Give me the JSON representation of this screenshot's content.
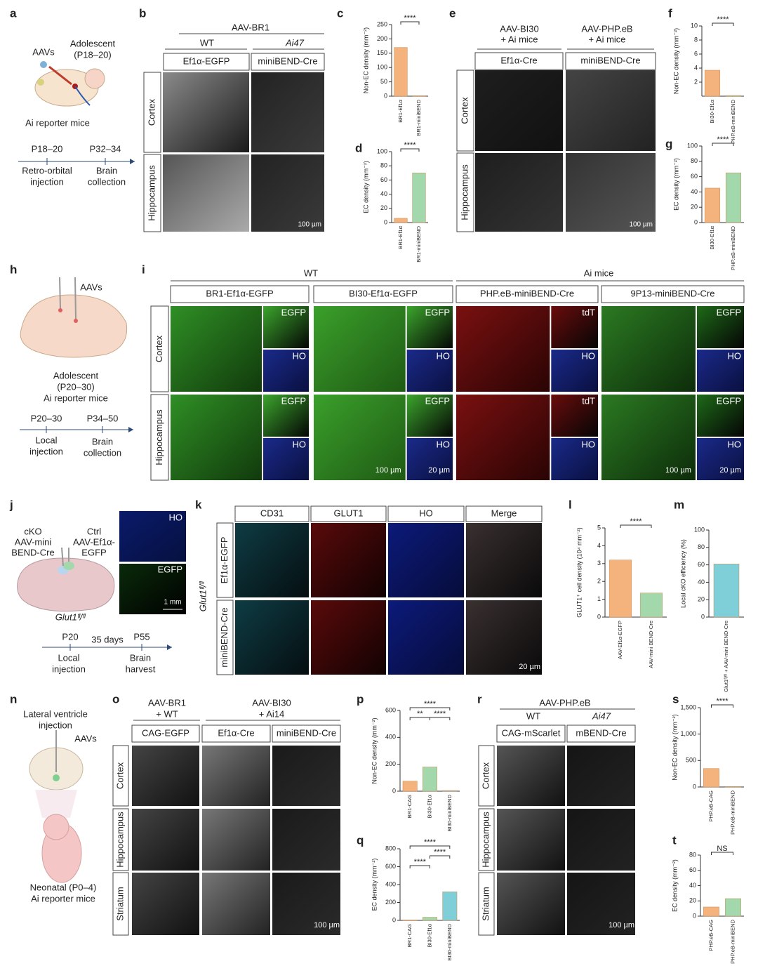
{
  "a": {
    "label": "a",
    "aavs": "AAVs",
    "age": [
      "Adolescent",
      "(P18–20)"
    ],
    "mice": "Ai reporter mice",
    "t1": "P18–20",
    "t2": "P32–34",
    "s1": [
      "Retro-orbital",
      "injection"
    ],
    "s2": [
      "Brain",
      "collection"
    ]
  },
  "b": {
    "label": "b",
    "vector": "AAV-BR1",
    "groups": [
      "WT",
      "Ai47"
    ],
    "constructs": [
      "Ef1α-EGFP",
      "miniBEND-Cre"
    ],
    "regions": [
      "Cortex",
      "Hippocampus"
    ],
    "scale": "100 µm"
  },
  "c": {
    "label": "c",
    "chart": {
      "type": "bar",
      "ylabel": "Non-EC density (mm⁻²)",
      "categories": [
        "BR1-Ef1α",
        "BR1-miniBEND"
      ],
      "values": [
        170,
        2
      ],
      "colors": [
        "#f4b27c",
        "#a3d8ad"
      ],
      "ylim": [
        0,
        250
      ],
      "yticks": [
        0,
        50,
        100,
        150,
        200,
        250
      ],
      "significance": [
        "****"
      ]
    }
  },
  "d": {
    "label": "d",
    "chart": {
      "type": "bar",
      "ylabel": "EC density (mm⁻²)",
      "categories": [
        "BR1-Ef1α",
        "BR1-miniBEND"
      ],
      "values": [
        6,
        70
      ],
      "colors": [
        "#f4b27c",
        "#a3d8ad"
      ],
      "ylim": [
        0,
        100
      ],
      "yticks": [
        0,
        20,
        40,
        60,
        80,
        100
      ],
      "significance": [
        "****"
      ]
    }
  },
  "e": {
    "label": "e",
    "groups": [
      [
        "AAV-BI30",
        "+ Ai mice"
      ],
      [
        "AAV-PHP.eB",
        "+ Ai mice"
      ]
    ],
    "constructs": [
      "Ef1α-Cre",
      "miniBEND-Cre"
    ],
    "regions": [
      "Cortex",
      "Hippocampus"
    ],
    "scale": "100 µm"
  },
  "f": {
    "label": "f",
    "chart": {
      "type": "bar",
      "ylabel": "Non-EC density (mm⁻²)",
      "categories": [
        "BI30-Ef1α",
        "PHP.eB-miniBEND"
      ],
      "values": [
        3.7,
        0.1
      ],
      "colors": [
        "#f4b27c",
        "#a3d8ad"
      ],
      "ylim": [
        0,
        10
      ],
      "yticks": [
        2,
        4,
        6,
        8,
        10
      ],
      "significance": [
        "****"
      ]
    }
  },
  "g": {
    "label": "g",
    "chart": {
      "type": "bar",
      "ylabel": "EC density (mm⁻²)",
      "categories": [
        "BI30-Ef1α",
        "PHP.eB-miniBEND"
      ],
      "values": [
        45,
        65
      ],
      "colors": [
        "#f4b27c",
        "#a3d8ad"
      ],
      "ylim": [
        0,
        100
      ],
      "yticks": [
        0,
        20,
        40,
        60,
        80,
        100
      ],
      "significance": [
        "****"
      ]
    }
  },
  "h": {
    "label": "h",
    "aavs": "AAVs",
    "age": [
      "Adolescent",
      "(P20–30)",
      "Ai reporter mice"
    ],
    "t1": "P20–30",
    "t2": "P34–50",
    "s1": [
      "Local",
      "injection"
    ],
    "s2": [
      "Brain",
      "collection"
    ]
  },
  "i": {
    "label": "i",
    "groups": [
      "WT",
      "Ai mice"
    ],
    "constructs": [
      "BR1-Ef1α-EGFP",
      "BI30-Ef1α-EGFP",
      "PHP.eB-miniBEND-Cre",
      "9P13-miniBEND-Cre"
    ],
    "regions": [
      "Cortex",
      "Hippocampus"
    ],
    "insets": [
      [
        "EGFP",
        "HO",
        "EGFP",
        "HO"
      ],
      [
        "EGFP",
        "HO",
        "EGFP",
        "HO"
      ],
      [
        "tdT",
        "HO",
        "tdT",
        "HO"
      ],
      [
        "EGFP",
        "HO",
        "EGFP",
        "HO"
      ]
    ],
    "scales": [
      "100 µm",
      "20 µm"
    ]
  },
  "j": {
    "label": "j",
    "left": [
      "cKO",
      "AAV-mini",
      "BEND-Cre"
    ],
    "right": [
      "Ctrl",
      "AAV-Ef1α-",
      "EGFP"
    ],
    "genotype": "Glut1ᶠˡ/ᶠˡ",
    "stains": [
      "HO",
      "EGFP"
    ],
    "scale": "1 mm",
    "t1": "P20",
    "duration": "35 days",
    "t2": "P55",
    "s1": [
      "Local",
      "injection"
    ],
    "s2": [
      "Brain",
      "harvest"
    ]
  },
  "k": {
    "label": "k",
    "channels": [
      "CD31",
      "GLUT1",
      "HO",
      "Merge"
    ],
    "rows": [
      "Ef1α-EGFP",
      "miniBEND-Cre"
    ],
    "genotype": "Glut1ᶠˡ/ᶠˡ",
    "scale": "20 µm"
  },
  "l": {
    "label": "l",
    "chart": {
      "type": "bar",
      "ylabel": "GLUT1⁺ cell density (10⁴ mm⁻²)",
      "categories": [
        "AAV-Ef1α-EGFP",
        "AAV-mini BEND-Cre"
      ],
      "values": [
        3.2,
        1.35
      ],
      "colors": [
        "#f4b27c",
        "#a3d8ad"
      ],
      "ylim": [
        0,
        5
      ],
      "yticks": [
        0,
        1,
        2,
        3,
        4,
        5
      ],
      "significance": [
        "****"
      ]
    }
  },
  "m": {
    "label": "m",
    "chart": {
      "type": "bar",
      "ylabel": "Local cKO efficiency (%)",
      "categories": [
        "Glut1ᶠˡ/ᶠˡ + AAV-mini BEND-Cre"
      ],
      "values": [
        61
      ],
      "colors": [
        "#7fcfd8"
      ],
      "ylim": [
        0,
        100
      ],
      "yticks": [
        0,
        20,
        40,
        60,
        80,
        100
      ],
      "significance": []
    }
  },
  "n": {
    "label": "n",
    "title": [
      "Lateral ventricle",
      "injection"
    ],
    "aavs": "AAVs",
    "mice": [
      "Neonatal (P0–4)",
      "Ai reporter mice"
    ]
  },
  "o": {
    "label": "o",
    "groups": [
      [
        "AAV-BR1",
        "+ WT"
      ],
      [
        "AAV-BI30",
        "+ Ai14"
      ]
    ],
    "constructs": [
      "CAG-EGFP",
      "Ef1α-Cre",
      "miniBEND-Cre"
    ],
    "regions": [
      "Cortex",
      "Hippocampus",
      "Striatum"
    ],
    "scale": "100 µm"
  },
  "p": {
    "label": "p",
    "chart": {
      "type": "bar",
      "ylabel": "Non-EC density (mm⁻²)",
      "categories": [
        "BR1-CAG",
        "BI30-Ef1α",
        "BI30-miniBEND"
      ],
      "values": [
        75,
        180,
        5
      ],
      "colors": [
        "#f4b27c",
        "#a3d8ad",
        "#7fcfd8"
      ],
      "ylim": [
        0,
        600
      ],
      "yticks": [
        0,
        200,
        400,
        600
      ],
      "significance": [
        "****",
        "**",
        "****"
      ]
    }
  },
  "q": {
    "label": "q",
    "chart": {
      "type": "bar",
      "ylabel": "EC density (mm⁻²)",
      "categories": [
        "BR1-CAG",
        "BI30-Ef1α",
        "BI30-miniBEND"
      ],
      "values": [
        5,
        35,
        320
      ],
      "colors": [
        "#f4b27c",
        "#a3d8ad",
        "#7fcfd8"
      ],
      "ylim": [
        0,
        800
      ],
      "yticks": [
        0,
        200,
        400,
        600,
        800
      ],
      "significance": [
        "****",
        "****",
        "****"
      ]
    }
  },
  "r": {
    "label": "r",
    "vector": "AAV-PHP.eB",
    "groups": [
      "WT",
      "Ai47"
    ],
    "constructs": [
      "CAG-mScarlet",
      "mBEND-Cre"
    ],
    "regions": [
      "Cortex",
      "Hippocampus",
      "Striatum"
    ],
    "scale": "100 µm"
  },
  "s": {
    "label": "s",
    "chart": {
      "type": "bar",
      "ylabel": "Non-EC density (mm⁻²)",
      "categories": [
        "PHP.eB-CAG",
        "PHP.eB-miniBEND"
      ],
      "values": [
        350,
        10
      ],
      "colors": [
        "#f4b27c",
        "#a3d8ad"
      ],
      "ylim": [
        0,
        1500
      ],
      "yticks": [
        0,
        500,
        {
          "value": 1000,
          "label": "1,000"
        },
        {
          "value": 1500,
          "label": "1,500"
        }
      ],
      "significance": [
        "****"
      ]
    }
  },
  "t": {
    "label": "t",
    "chart": {
      "type": "bar",
      "ylabel": "EC density (mm⁻²)",
      "categories": [
        "PHP.eB-CAG",
        "PHP.eB-miniBEND"
      ],
      "values": [
        12,
        23
      ],
      "colors": [
        "#f4b27c",
        "#a3d8ad"
      ],
      "ylim": [
        0,
        80
      ],
      "yticks": [
        0,
        20,
        40,
        60,
        80
      ],
      "significance": [
        "NS"
      ]
    }
  }
}
